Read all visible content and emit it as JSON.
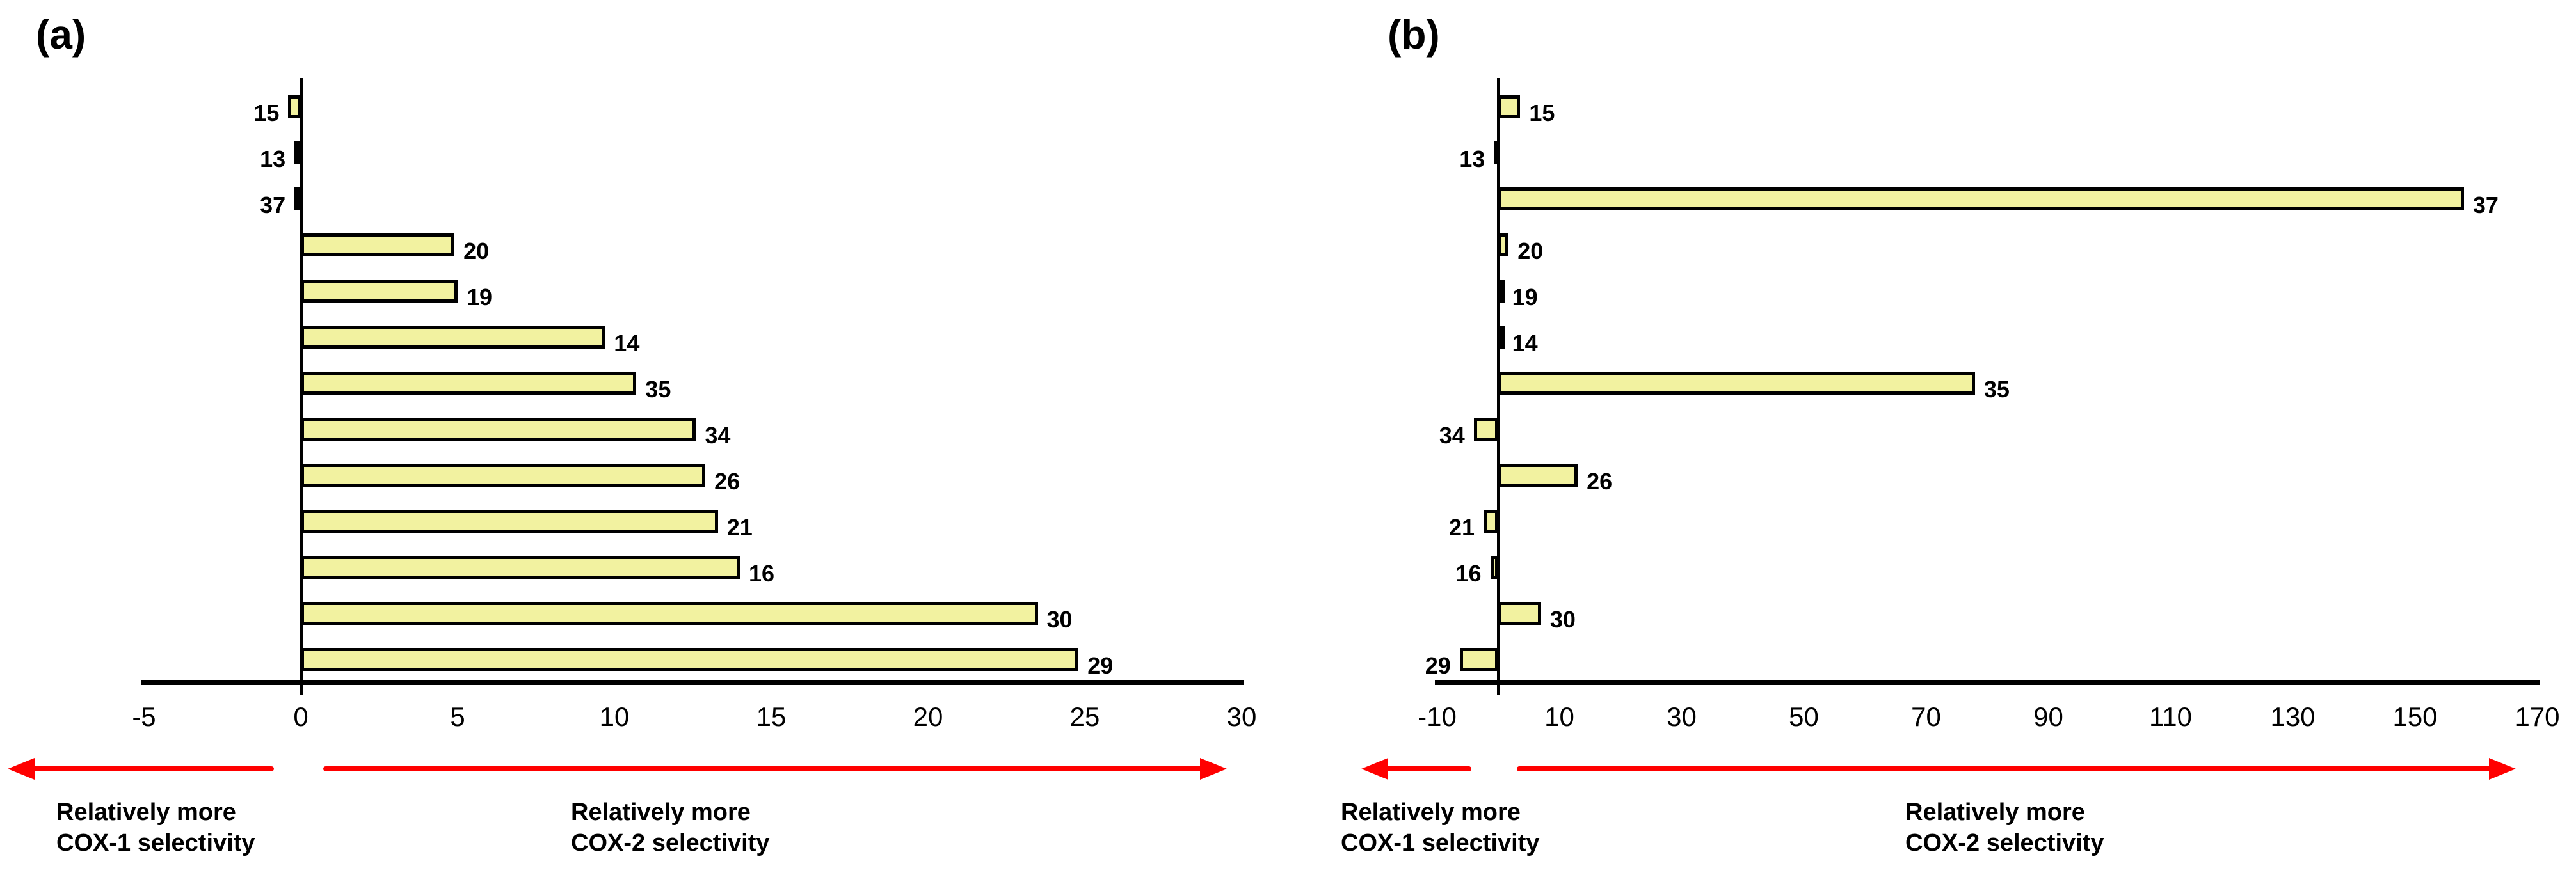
{
  "colors": {
    "bar_fill": "#F2F2A0",
    "bar_border": "#000000",
    "axis": "#000000",
    "arrow_red": "#FF0000",
    "text": "#000000",
    "background": "#FFFFFF"
  },
  "chart_data": [
    {
      "type": "bar",
      "orientation": "horizontal",
      "panel_label": "(a)",
      "categories": [
        "15",
        "13",
        "37",
        "20",
        "19",
        "14",
        "35",
        "34",
        "26",
        "21",
        "16",
        "30",
        "29"
      ],
      "values": [
        -0.4,
        -0.2,
        -0.2,
        4.9,
        5.0,
        9.7,
        10.7,
        12.6,
        12.9,
        13.3,
        14.0,
        23.5,
        24.8
      ],
      "xlim": [
        -5,
        30
      ],
      "x_ticks": [
        -5,
        0,
        5,
        10,
        15,
        20,
        25,
        30
      ],
      "grid": false,
      "legend": null,
      "annotations": {
        "left": [
          "Relatively more",
          "COX-1 selectivity"
        ],
        "right": [
          "Relatively more",
          "COX-2 selectivity"
        ]
      }
    },
    {
      "type": "bar",
      "orientation": "horizontal",
      "panel_label": "(b)",
      "categories": [
        "15",
        "13",
        "37",
        "20",
        "19",
        "14",
        "35",
        "34",
        "26",
        "21",
        "16",
        "30",
        "29"
      ],
      "values": [
        3.6,
        -0.7,
        158,
        1.7,
        0.8,
        0.8,
        78,
        -4,
        13,
        -2.4,
        -1.3,
        7,
        -6.3
      ],
      "xlim": [
        -10,
        170
      ],
      "x_ticks": [
        -10,
        10,
        30,
        50,
        70,
        90,
        110,
        130,
        150,
        170
      ],
      "grid": false,
      "legend": null,
      "annotations": {
        "left": [
          "Relatively more",
          "COX-1 selectivity"
        ],
        "right": [
          "Relatively more",
          "COX-2 selectivity"
        ]
      }
    }
  ]
}
